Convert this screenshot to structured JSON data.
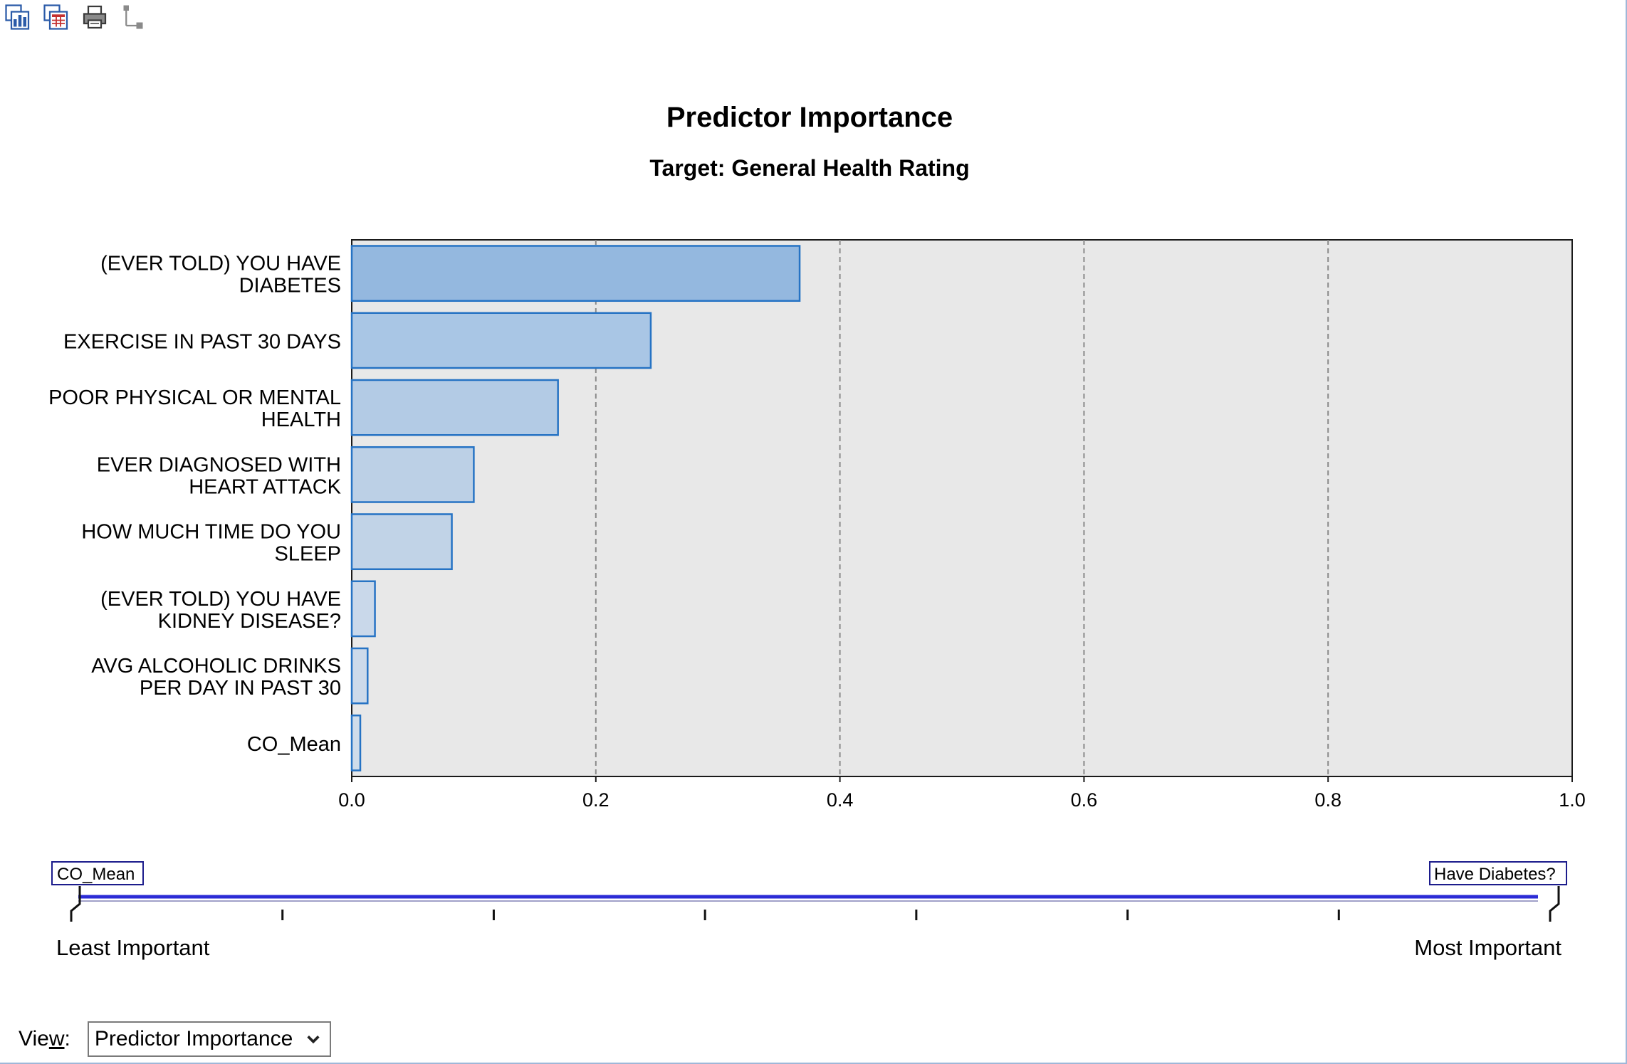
{
  "toolbar": {
    "icons": [
      "copy-chart-icon",
      "copy-table-icon",
      "print-icon",
      "tree-icon"
    ]
  },
  "colors": {
    "plot_bg": "#e8e8e8",
    "bar_stroke": "#2673c4",
    "slider_line": "#2b2bd6",
    "tag_border": "#1c1c8c"
  },
  "chart_data": {
    "type": "bar",
    "orientation": "horizontal",
    "title": "Predictor Importance",
    "subtitle": "Target: General Health Rating",
    "categories": [
      [
        "(EVER TOLD) YOU HAVE",
        "DIABETES"
      ],
      [
        "EXERCISE IN PAST 30 DAYS"
      ],
      [
        "POOR PHYSICAL OR MENTAL",
        "HEALTH"
      ],
      [
        "EVER DIAGNOSED WITH",
        "HEART ATTACK"
      ],
      [
        "HOW MUCH TIME DO YOU",
        "SLEEP"
      ],
      [
        "(EVER TOLD) YOU HAVE",
        "KIDNEY DISEASE?"
      ],
      [
        "AVG ALCOHOLIC DRINKS",
        "PER DAY IN PAST 30"
      ],
      [
        "CO_Mean"
      ]
    ],
    "values": [
      0.367,
      0.245,
      0.169,
      0.1,
      0.082,
      0.019,
      0.013,
      0.007
    ],
    "bar_colors": [
      "#94b8df",
      "#a9c6e5",
      "#b3cbe5",
      "#bcd0e6",
      "#c1d3e7",
      "#c9d8ea",
      "#ccdaea",
      "#cfdcea"
    ],
    "xlim": [
      0,
      1.0
    ],
    "xticks": [
      "0.0",
      "0.2",
      "0.4",
      "0.6",
      "0.8",
      "1.0"
    ],
    "grid": "vertical-dashed",
    "legend": "none"
  },
  "slider": {
    "left_tag": "CO_Mean",
    "right_tag": "Have Diabetes?",
    "least_label": "Least Important",
    "most_label": "Most Important"
  },
  "view": {
    "label_prefix": "Vie",
    "label_underlined": "w",
    "label_suffix": ":",
    "selected": "Predictor Importance"
  }
}
